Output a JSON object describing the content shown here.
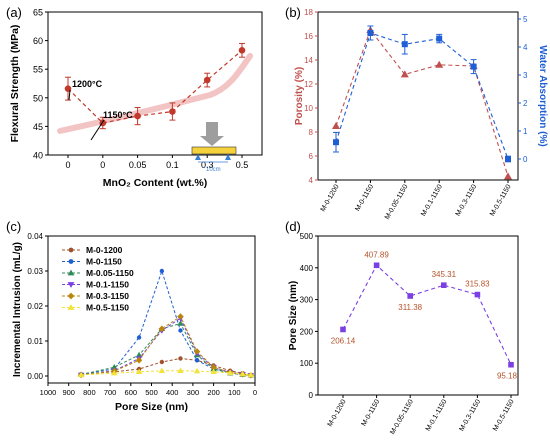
{
  "panels": {
    "a": "(a)",
    "b": "(b)",
    "c": "(c)",
    "d": "(d)"
  },
  "colors": {
    "flexural": "#c0392b",
    "porosity": "#c0504d",
    "water": "#1f5fd6",
    "pore": "#7b3fe4",
    "axis_right_b": "#1f5fd6",
    "axis_left_b": "#c0504d"
  },
  "chart_data": [
    {
      "id": "a",
      "type": "line",
      "categories": [
        "0",
        "0",
        "0.05",
        "0.1",
        "0.3",
        "0.5"
      ],
      "values": [
        51.6,
        45.6,
        46.8,
        47.6,
        53.1,
        58.3
      ],
      "errors": [
        2.0,
        1.0,
        1.5,
        1.5,
        1.2,
        1.2
      ],
      "xlabel": "MnO₂ Content (wt.%)",
      "ylabel": "Flexural Strength (MPa)",
      "ylim": [
        40,
        65
      ],
      "yticks": [
        "40",
        "45",
        "50",
        "55",
        "60",
        "65"
      ],
      "annotations": [
        "1200°C",
        "1150°C",
        "10cm"
      ]
    },
    {
      "id": "b",
      "type": "line",
      "categories": [
        "M-0-1200",
        "M-0-1150",
        "M-0.05-1150",
        "M-0.1-1150",
        "M-0.3-1150",
        "M-0.5-1150"
      ],
      "series": [
        {
          "values": [
            8.5,
            16.5,
            12.8,
            13.6,
            13.5,
            4.3
          ],
          "axis": "left"
        },
        {
          "values": [
            0.6,
            4.5,
            4.1,
            4.3,
            3.3,
            0.0
          ],
          "errors": [
            0.35,
            0.25,
            0.35,
            0.15,
            0.25,
            0.1
          ],
          "axis": "right"
        }
      ],
      "ylabel_left": "Porosity (%)",
      "ylabel_right": "Water Absorption (%)",
      "ylim_left": [
        4,
        18
      ],
      "ylim_right": [
        -0.75,
        5.25
      ],
      "yticks_left": [
        "4",
        "6",
        "8",
        "10",
        "12",
        "14",
        "16",
        "18"
      ],
      "yticks_right": [
        "0",
        "1",
        "2",
        "3",
        "4",
        "5"
      ]
    },
    {
      "id": "c",
      "type": "line",
      "xlabel": "Pore Size (nm)",
      "ylabel": "Incremental Intrusion (mL/g)",
      "xlim": [
        1000,
        0
      ],
      "ylim": [
        -0.002,
        0.04
      ],
      "xticks": [
        "1000",
        "900",
        "800",
        "700",
        "600",
        "500",
        "400",
        "300",
        "200",
        "100",
        "0"
      ],
      "yticks": [
        "0.00",
        "0.01",
        "0.02",
        "0.03",
        "0.04"
      ],
      "series": [
        {
          "name": "M-0-1200",
          "x": [
            840,
            680,
            560,
            450,
            360,
            280,
            200,
            120,
            60,
            20
          ],
          "y": [
            0.0005,
            0.0012,
            0.002,
            0.004,
            0.005,
            0.0045,
            0.003,
            0.0015,
            0.0008,
            0.0003
          ]
        },
        {
          "name": "M-0-1150",
          "x": [
            840,
            680,
            560,
            450,
            360,
            280,
            200,
            120,
            60,
            20
          ],
          "y": [
            0.0005,
            0.002,
            0.011,
            0.03,
            0.013,
            0.0045,
            0.002,
            0.001,
            0.0005,
            0.0002
          ]
        },
        {
          "name": "M-0.05-1150",
          "x": [
            840,
            680,
            560,
            450,
            360,
            280,
            200,
            120,
            60,
            20
          ],
          "y": [
            0.0004,
            0.0025,
            0.006,
            0.0135,
            0.015,
            0.006,
            0.002,
            0.0008,
            0.0004,
            0.0002
          ]
        },
        {
          "name": "M-0.1-1150",
          "x": [
            840,
            680,
            560,
            450,
            360,
            280,
            200,
            120,
            60,
            20
          ],
          "y": [
            0.0003,
            0.0015,
            0.005,
            0.013,
            0.0165,
            0.0065,
            0.0025,
            0.001,
            0.0005,
            0.0002
          ]
        },
        {
          "name": "M-0.3-1150",
          "x": [
            840,
            680,
            560,
            450,
            360,
            280,
            200,
            120,
            60,
            20
          ],
          "y": [
            0.0003,
            0.0014,
            0.0045,
            0.0135,
            0.017,
            0.007,
            0.0025,
            0.001,
            0.0005,
            0.0002
          ]
        },
        {
          "name": "M-0.5-1150",
          "x": [
            840,
            680,
            560,
            450,
            360,
            280,
            200,
            120,
            60,
            20
          ],
          "y": [
            0.0003,
            0.0008,
            0.0012,
            0.0015,
            0.0015,
            0.0014,
            0.0012,
            0.0009,
            0.0006,
            0.0003
          ]
        }
      ]
    },
    {
      "id": "d",
      "type": "line",
      "categories": [
        "M-0-1200",
        "M-0-1150",
        "M-0.05-1150",
        "M-0.1-1150",
        "M-0.3-1150",
        "M-0.5-1150"
      ],
      "values": [
        206.14,
        407.89,
        311.38,
        345.31,
        315.83,
        95.18
      ],
      "labels": [
        "206.14",
        "407.89",
        "311.38",
        "345.31",
        "315.83",
        "95.18"
      ],
      "ylabel": "Pore Size (nm)",
      "ylim": [
        0,
        500
      ],
      "yticks": [
        "0",
        "100",
        "200",
        "300",
        "400",
        "500"
      ]
    }
  ]
}
